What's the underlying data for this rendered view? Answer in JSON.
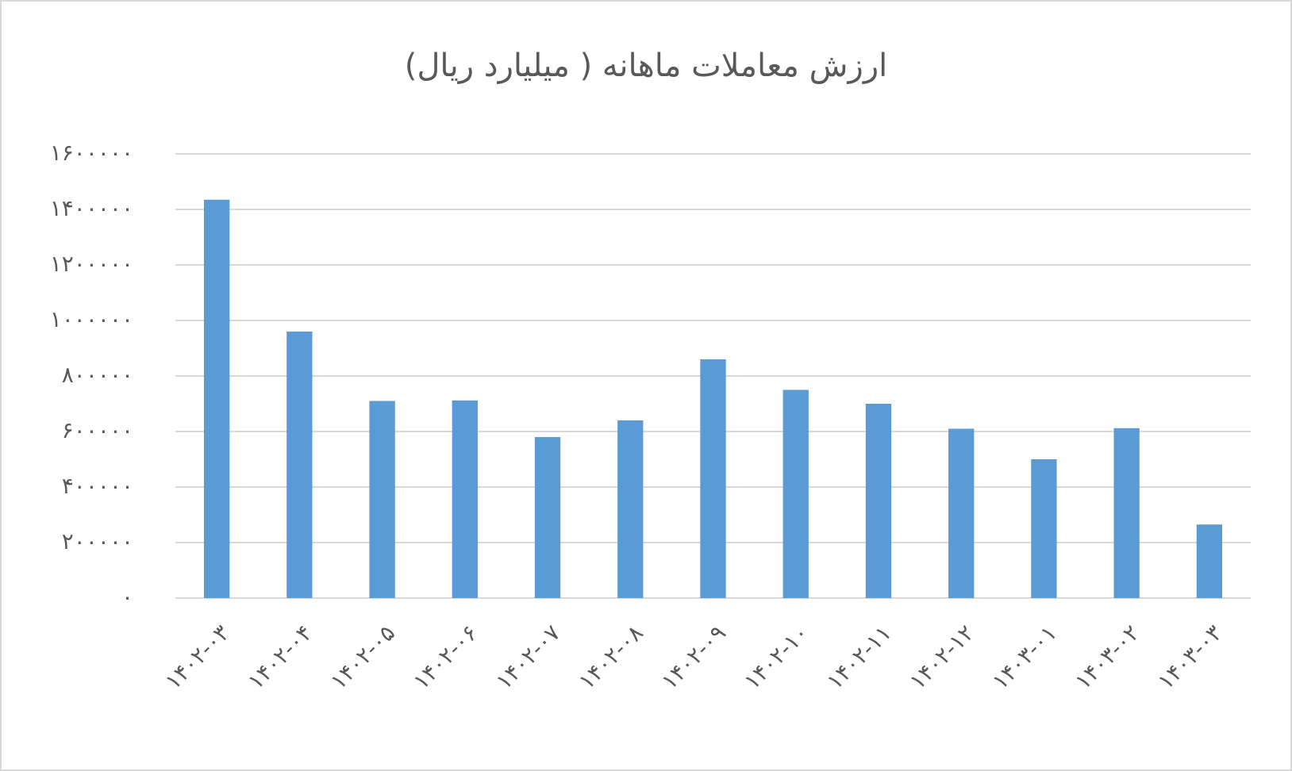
{
  "chart_data": {
    "type": "bar",
    "title": "ارزش معاملات ماهانه ( میلیارد ریال)",
    "categories": [
      "۱۴۰۲-۰۳",
      "۱۴۰۲-۰۴",
      "۱۴۰۲-۰۵",
      "۱۴۰۲-۰۶",
      "۱۴۰۲-۰۷",
      "۱۴۰۲-۰۸",
      "۱۴۰۲-۰۹",
      "۱۴۰۲-۱۰",
      "۱۴۰۲-۱۱",
      "۱۴۰۲-۱۲",
      "۱۴۰۳-۰۱",
      "۱۴۰۳-۰۲",
      "۱۴۰۳-۰۳"
    ],
    "values": [
      1435000,
      960000,
      710000,
      712000,
      580000,
      640000,
      860000,
      750000,
      700000,
      610000,
      500000,
      612000,
      265000
    ],
    "color": "#5b9bd5",
    "ylim": [
      0,
      1600000
    ],
    "yticks": [
      {
        "value": 0,
        "label": "۰"
      },
      {
        "value": 200000,
        "label": "۲۰۰۰۰۰"
      },
      {
        "value": 400000,
        "label": "۴۰۰۰۰۰"
      },
      {
        "value": 600000,
        "label": "۶۰۰۰۰۰"
      },
      {
        "value": 800000,
        "label": "۸۰۰۰۰۰"
      },
      {
        "value": 1000000,
        "label": "۱۰۰۰۰۰۰"
      },
      {
        "value": 1200000,
        "label": "۱۲۰۰۰۰۰"
      },
      {
        "value": 1400000,
        "label": "۱۴۰۰۰۰۰"
      },
      {
        "value": 1600000,
        "label": "۱۶۰۰۰۰۰"
      }
    ],
    "grid": true
  }
}
